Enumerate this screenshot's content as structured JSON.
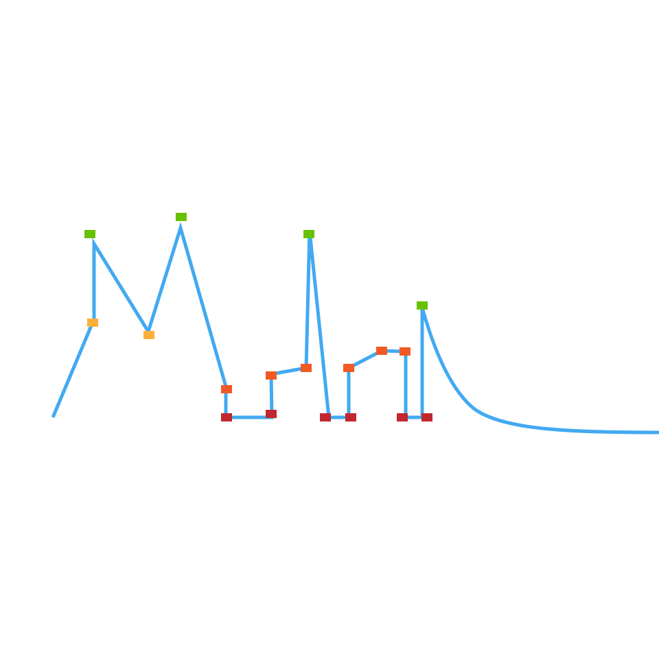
{
  "diagram": {
    "line_color": "#42a9f2",
    "marker_colors": {
      "peak": "#66c200",
      "mid": "#fbb03b",
      "step": "#f15a24",
      "base": "#c1272d"
    }
  }
}
